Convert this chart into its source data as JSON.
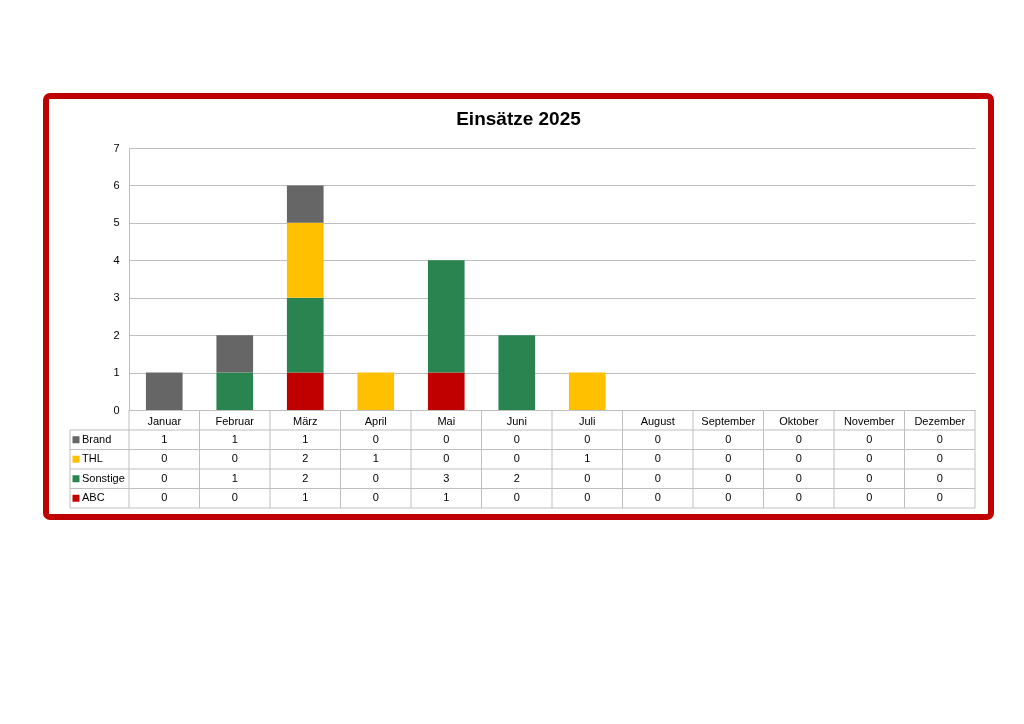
{
  "chart_data": {
    "type": "bar",
    "title": "Einsätze 2025",
    "categories": [
      "Januar",
      "Februar",
      "März",
      "April",
      "Mai",
      "Juni",
      "Juli",
      "August",
      "September",
      "Oktober",
      "November",
      "Dezember"
    ],
    "series": [
      {
        "name": "ABC",
        "color": "#c00000",
        "values": [
          0,
          0,
          1,
          0,
          1,
          0,
          0,
          0,
          0,
          0,
          0,
          0
        ]
      },
      {
        "name": "Sonstige",
        "color": "#2a8450",
        "values": [
          0,
          1,
          2,
          0,
          3,
          2,
          0,
          0,
          0,
          0,
          0,
          0
        ]
      },
      {
        "name": "THL",
        "color": "#ffc000",
        "values": [
          0,
          0,
          2,
          1,
          0,
          0,
          1,
          0,
          0,
          0,
          0,
          0
        ]
      },
      {
        "name": "Brand",
        "color": "#666666",
        "values": [
          1,
          1,
          1,
          0,
          0,
          0,
          0,
          0,
          0,
          0,
          0,
          0
        ]
      }
    ],
    "stacked": true,
    "ylim": [
      0,
      7
    ],
    "yticks": [
      0,
      1,
      2,
      3,
      4,
      5,
      6,
      7
    ],
    "grid": "y",
    "legend": "bottom",
    "data_labels": true
  }
}
